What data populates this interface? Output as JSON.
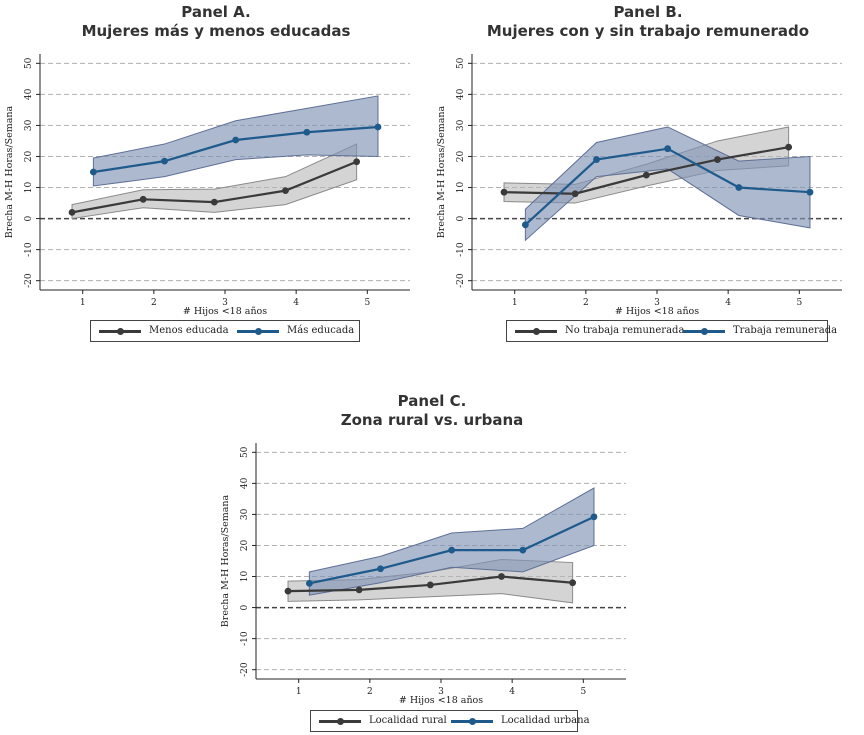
{
  "colors": {
    "series1": "#3a3a3a",
    "series2": "#1f5a8c",
    "band1": "#b8b8b8",
    "band2": "#8193b4"
  },
  "charts": [
    {
      "id": "A",
      "title_line1": "Panel A.",
      "title_line2": "Mujeres más y menos educadas",
      "ylabel": "Brecha M-H Horas/Semana",
      "xlabel": "# Hijos <18 años",
      "legend": [
        "Menos educada",
        "Más educada"
      ]
    },
    {
      "id": "B",
      "title_line1": "Panel B.",
      "title_line2": "Mujeres con y sin trabajo remunerado",
      "ylabel": "Brecha M-H Horas/Semana",
      "xlabel": "# Hijos <18 años",
      "legend": [
        "No trabaja remunerada",
        "Trabaja remunerada"
      ]
    },
    {
      "id": "C",
      "title_line1": "Panel C.",
      "title_line2": "Zona rural vs. urbana",
      "ylabel": "Brecha M-H Horas/Semana",
      "xlabel": "# Hijos <18 años",
      "legend": [
        "Localidad rural",
        "Localidad urbana"
      ]
    }
  ],
  "chart_data": [
    {
      "type": "line",
      "title": "Panel A. Mujeres más y menos educadas",
      "xlabel": "# Hijos <18 años",
      "ylabel": "Brecha M-H Horas/Semana",
      "xticks": [
        1,
        2,
        3,
        4,
        5
      ],
      "xtick_labels": [
        "1",
        "2",
        "3",
        "4",
        "5"
      ],
      "yticks": [
        -20,
        -10,
        0,
        10,
        20,
        30,
        40,
        50
      ],
      "ytick_labels": [
        "-20",
        "-10",
        "0",
        "10",
        "20",
        "30",
        "40",
        "50"
      ],
      "xlim": [
        0.4,
        5.6
      ],
      "ylim": [
        -23,
        53
      ],
      "grid": true,
      "legend_position": "bottom",
      "series": [
        {
          "name": "Menos educada",
          "x": [
            0.85,
            1.85,
            2.85,
            3.85,
            4.85
          ],
          "y": [
            2,
            6.2,
            5.3,
            9,
            18.3
          ],
          "lower": [
            0,
            3.5,
            2,
            4.5,
            12.5
          ],
          "upper": [
            4.5,
            9.3,
            9.5,
            13.5,
            24
          ]
        },
        {
          "name": "Más educada",
          "x": [
            1.15,
            2.15,
            3.15,
            4.15,
            5.15
          ],
          "y": [
            15,
            18.5,
            25.3,
            27.8,
            29.5
          ],
          "lower": [
            10.5,
            13.5,
            19,
            20.5,
            20
          ],
          "upper": [
            19.5,
            24,
            31.5,
            35.5,
            39.5
          ]
        }
      ]
    },
    {
      "type": "line",
      "title": "Panel B. Mujeres con y sin trabajo remunerado",
      "xlabel": "# Hijos <18 años",
      "ylabel": "Brecha M-H Horas/Semana",
      "xticks": [
        1,
        2,
        3,
        4,
        5
      ],
      "xtick_labels": [
        "1",
        "2",
        "3",
        "4",
        "5"
      ],
      "yticks": [
        -20,
        -10,
        0,
        10,
        20,
        30,
        40,
        50
      ],
      "ytick_labels": [
        "-20",
        "-10",
        "0",
        "10",
        "20",
        "30",
        "40",
        "50"
      ],
      "xlim": [
        0.4,
        5.6
      ],
      "ylim": [
        -23,
        53
      ],
      "grid": true,
      "legend_position": "bottom",
      "series": [
        {
          "name": "No trabaja remunerada",
          "x": [
            0.85,
            1.85,
            2.85,
            3.85,
            4.85
          ],
          "y": [
            8.5,
            8,
            14,
            19,
            23
          ],
          "lower": [
            5.5,
            5,
            10.5,
            15.5,
            17
          ],
          "upper": [
            11.5,
            11,
            17.5,
            25,
            29.5
          ]
        },
        {
          "name": "Trabaja remunerada",
          "x": [
            1.15,
            2.15,
            3.15,
            4.15,
            5.15
          ],
          "y": [
            -2,
            19,
            22.5,
            10,
            8.5
          ],
          "lower": [
            -7,
            13.5,
            16,
            1,
            -3
          ],
          "upper": [
            3,
            24.5,
            29.5,
            18.5,
            20
          ]
        }
      ]
    },
    {
      "type": "line",
      "title": "Panel C. Zona rural vs. urbana",
      "xlabel": "# Hijos <18 años",
      "ylabel": "Brecha M-H Horas/Semana",
      "xticks": [
        1,
        2,
        3,
        4,
        5
      ],
      "xtick_labels": [
        "1",
        "2",
        "3",
        "4",
        "5"
      ],
      "yticks": [
        -20,
        -10,
        0,
        10,
        20,
        30,
        40,
        50
      ],
      "ytick_labels": [
        "-20",
        "-10",
        "0",
        "10",
        "20",
        "30",
        "40",
        "50"
      ],
      "xlim": [
        0.4,
        5.6
      ],
      "ylim": [
        -23,
        53
      ],
      "grid": true,
      "legend_position": "bottom",
      "series": [
        {
          "name": "Localidad rural",
          "x": [
            0.85,
            1.85,
            2.85,
            3.85,
            4.85
          ],
          "y": [
            5.3,
            5.7,
            7.3,
            10,
            8
          ],
          "lower": [
            2,
            2.5,
            3.5,
            4.5,
            1.5
          ],
          "upper": [
            8.5,
            9,
            11.5,
            15.5,
            14.5
          ]
        },
        {
          "name": "Localidad urbana",
          "x": [
            1.15,
            2.15,
            3.15,
            4.15,
            5.15
          ],
          "y": [
            7.8,
            12.5,
            18.5,
            18.5,
            29.2
          ],
          "lower": [
            4,
            8,
            13,
            11.5,
            20
          ],
          "upper": [
            11.5,
            16.5,
            24,
            25.5,
            38.5
          ]
        }
      ]
    }
  ]
}
